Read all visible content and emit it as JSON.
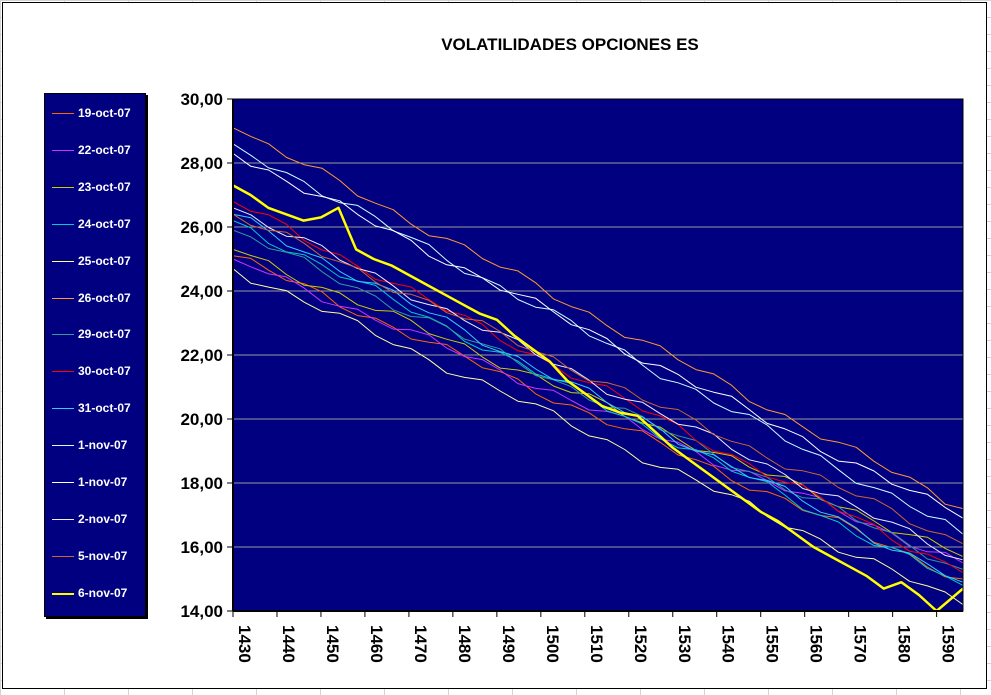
{
  "chart_data": {
    "type": "line",
    "title": "VOLATILIDADES OPCIONES ES",
    "xlabel": "",
    "ylabel": "",
    "ylim": [
      14,
      30
    ],
    "xlim": [
      1430,
      1596
    ],
    "yticks": [
      30,
      28,
      26,
      24,
      22,
      20,
      18,
      16,
      14
    ],
    "ytick_labels": [
      "30,00",
      "28,00",
      "26,00",
      "24,00",
      "22,00",
      "20,00",
      "18,00",
      "16,00",
      "14,00"
    ],
    "xticks": [
      1430,
      1440,
      1450,
      1460,
      1470,
      1480,
      1490,
      1500,
      1510,
      1520,
      1530,
      1540,
      1550,
      1560,
      1570,
      1580,
      1590
    ],
    "xtick_labels": [
      "1430",
      "1440",
      "1450",
      "1460",
      "1470",
      "1480",
      "1490",
      "1500",
      "1510",
      "1520",
      "1530",
      "1540",
      "1550",
      "1560",
      "1570",
      "1580",
      "1590"
    ],
    "grid": true,
    "legend_position": "left",
    "plot_background": "#000080",
    "series": [
      {
        "name": "19-oct-07",
        "color": "#FF6600",
        "width": 1,
        "x": [
          1430,
          1596
        ],
        "y": [
          25.1,
          15.0
        ]
      },
      {
        "name": "22-oct-07",
        "color": "#CC33FF",
        "width": 1,
        "x": [
          1430,
          1596
        ],
        "y": [
          25.0,
          15.5
        ]
      },
      {
        "name": "23-oct-07",
        "color": "#CCCC00",
        "width": 1,
        "x": [
          1430,
          1596
        ],
        "y": [
          25.3,
          15.7
        ]
      },
      {
        "name": "24-oct-07",
        "color": "#00CCCC",
        "width": 1,
        "x": [
          1430,
          1596
        ],
        "y": [
          26.2,
          14.8
        ]
      },
      {
        "name": "25-oct-07",
        "color": "#FFFF99",
        "width": 1,
        "x": [
          1430,
          1596
        ],
        "y": [
          24.7,
          14.2
        ]
      },
      {
        "name": "26-oct-07",
        "color": "#FF9933",
        "width": 1,
        "x": [
          1430,
          1596
        ],
        "y": [
          29.1,
          17.2
        ]
      },
      {
        "name": "29-oct-07",
        "color": "#339999",
        "width": 1,
        "x": [
          1430,
          1596
        ],
        "y": [
          25.9,
          15.3
        ]
      },
      {
        "name": "30-oct-07",
        "color": "#FF0000",
        "width": 1,
        "x": [
          1430,
          1596
        ],
        "y": [
          26.8,
          15.2
        ]
      },
      {
        "name": "31-oct-07",
        "color": "#33CCFF",
        "width": 1,
        "x": [
          1430,
          1596
        ],
        "y": [
          26.4,
          14.9
        ]
      },
      {
        "name": "1-nov-07",
        "color": "#CCFFFF",
        "width": 1,
        "x": [
          1430,
          1596
        ],
        "y": [
          28.6,
          16.4
        ]
      },
      {
        "name": "1-nov-07",
        "color": "#FFFFFF",
        "width": 1,
        "x": [
          1430,
          1596
        ],
        "y": [
          28.3,
          16.9
        ]
      },
      {
        "name": "2-nov-07",
        "color": "#EEEEFF",
        "width": 1,
        "x": [
          1430,
          1596
        ],
        "y": [
          26.6,
          15.6
        ]
      },
      {
        "name": "5-nov-07",
        "color": "#CC6633",
        "width": 1,
        "x": [
          1430,
          1596
        ],
        "y": [
          26.4,
          16.1
        ]
      },
      {
        "name": "6-nov-07",
        "color": "#FFFF00",
        "width": 2.5,
        "x": [
          1430,
          1434,
          1438,
          1442,
          1446,
          1450,
          1454,
          1458,
          1462,
          1466,
          1470,
          1474,
          1478,
          1482,
          1486,
          1490,
          1494,
          1498,
          1502,
          1506,
          1510,
          1514,
          1518,
          1522,
          1526,
          1530,
          1534,
          1538,
          1542,
          1546,
          1550,
          1554,
          1558,
          1562,
          1566,
          1570,
          1574,
          1578,
          1582,
          1586,
          1590,
          1596
        ],
        "y": [
          27.3,
          27.0,
          26.6,
          26.4,
          26.2,
          26.3,
          26.6,
          25.3,
          25.0,
          24.8,
          24.5,
          24.2,
          23.9,
          23.6,
          23.3,
          23.1,
          22.6,
          22.2,
          21.8,
          21.2,
          20.8,
          20.4,
          20.2,
          20.1,
          19.6,
          19.1,
          18.7,
          18.3,
          17.9,
          17.5,
          17.1,
          16.8,
          16.4,
          16.0,
          15.7,
          15.4,
          15.1,
          14.7,
          14.9,
          14.5,
          14.0,
          14.7
        ]
      }
    ]
  }
}
